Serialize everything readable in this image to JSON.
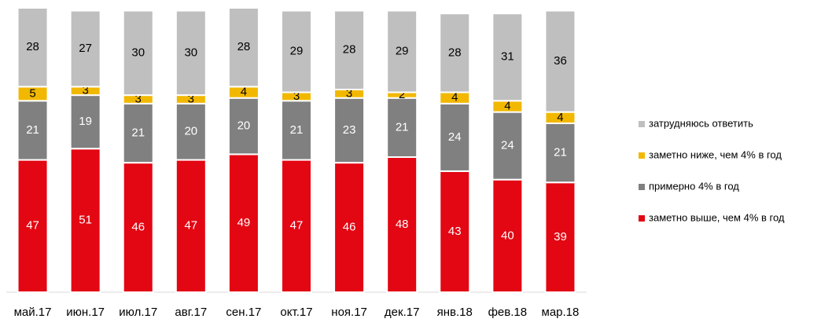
{
  "chart_data": {
    "type": "stacked_bar",
    "categories": [
      "май.17",
      "июн.17",
      "июл.17",
      "авг.17",
      "сен.17",
      "окт.17",
      "ноя.17",
      "дек.17",
      "янв.18",
      "фев.18",
      "мар.18"
    ],
    "series": [
      {
        "name": "заметно выше, чем 4% в год",
        "color": "#e30613",
        "values": [
          47,
          51,
          46,
          47,
          49,
          47,
          46,
          48,
          43,
          40,
          39
        ]
      },
      {
        "name": "примерно 4% в год",
        "color": "#808080",
        "values": [
          21,
          19,
          21,
          20,
          20,
          21,
          23,
          21,
          24,
          24,
          21
        ]
      },
      {
        "name": "заметно ниже, чем 4% в год",
        "color": "#f2b800",
        "values": [
          5,
          3,
          3,
          3,
          4,
          3,
          3,
          2,
          4,
          4,
          4
        ]
      },
      {
        "name": "затрудняюсь ответить",
        "color": "#bfbfbf",
        "values": [
          28,
          27,
          30,
          30,
          28,
          29,
          28,
          29,
          28,
          31,
          36
        ]
      }
    ],
    "ylim": [
      0,
      101
    ],
    "legend": "right"
  }
}
